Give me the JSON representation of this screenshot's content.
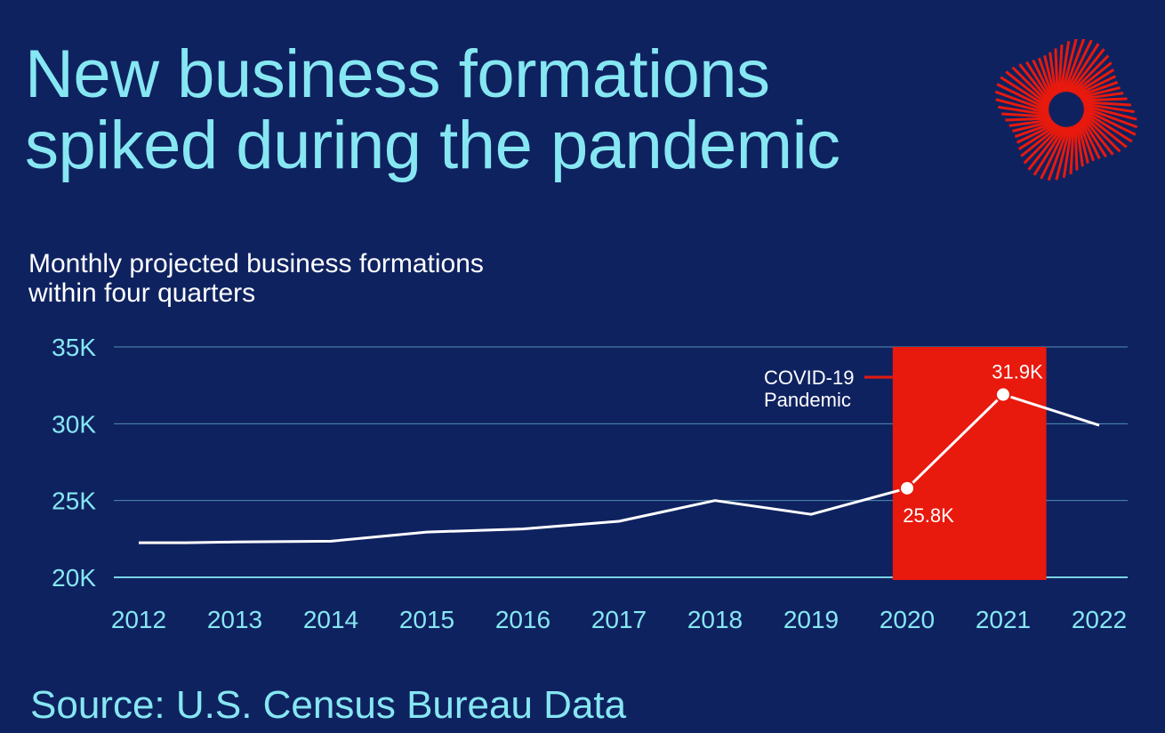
{
  "title_line1": "New business formations",
  "title_line2": "spiked during the pandemic",
  "subtitle_line1": "Monthly projected business formations",
  "subtitle_line2": "within four quarters",
  "source": "Source: U.S. Census Bureau Data",
  "logo_icon": "red-starburst-ring",
  "colors": {
    "background": "#0f2260",
    "accent": "#86e7f2",
    "highlight": "#e8190d",
    "line": "#ffffff"
  },
  "chart_data": {
    "type": "line",
    "x": [
      2012,
      2012.5,
      2013,
      2014,
      2015,
      2016,
      2017,
      2018,
      2019,
      2020,
      2021,
      2022
    ],
    "y": [
      22250,
      22250,
      22300,
      22350,
      22950,
      23150,
      23650,
      25000,
      24100,
      25800,
      31900,
      29900
    ],
    "xticks": [
      "2012",
      "2013",
      "2014",
      "2015",
      "2016",
      "2017",
      "2018",
      "2019",
      "2020",
      "2021",
      "2022"
    ],
    "yticks": [
      "35K",
      "30K",
      "25K",
      "20K"
    ],
    "ylim": [
      20000,
      35000
    ],
    "xlim": [
      2012,
      2022
    ],
    "grid": true,
    "highlight": {
      "label_line1": "COVID-19",
      "label_line2": "Pandemic",
      "x_start": 2019.85,
      "x_end": 2021.45
    },
    "annotations": [
      {
        "text": "25.8K",
        "x": 2020,
        "y": 25800
      },
      {
        "text": "31.9K",
        "x": 2021,
        "y": 31900
      }
    ]
  }
}
